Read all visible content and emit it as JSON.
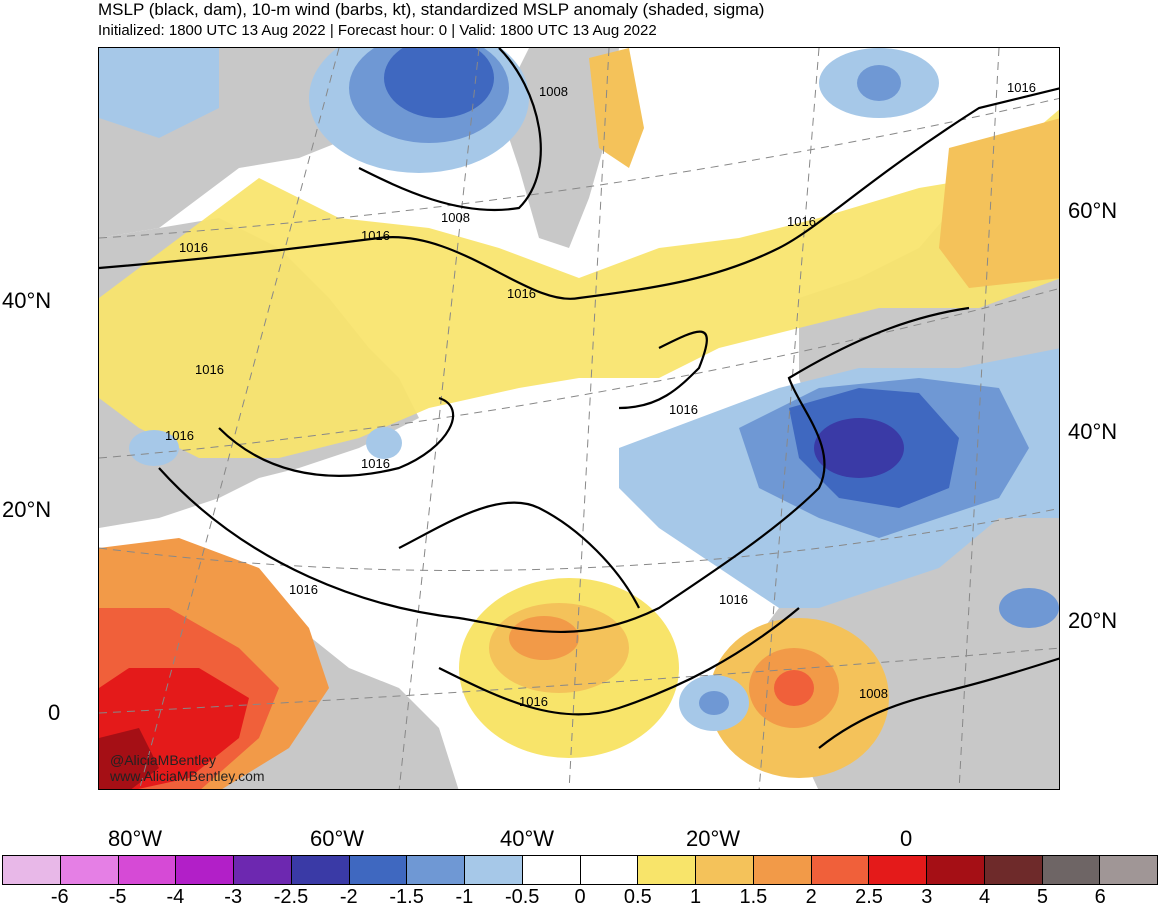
{
  "title": "MSLP (black, dam), 10-m wind (barbs, kt), standardized MSLP anomaly (shaded, sigma)",
  "subtitle": "Initialized: 1800 UTC 13 Aug 2022 | Forecast hour: 0 | Valid: 1800 UTC 13 Aug 2022",
  "watermark": [
    "@AliciaMBentley",
    "www.AliciaMBentley.com"
  ],
  "lat_labels_left": [
    "40°N",
    "20°N",
    "0"
  ],
  "lat_labels_right": [
    "60°N",
    "40°N",
    "20°N"
  ],
  "lon_labels": [
    "80°W",
    "60°W",
    "40°W",
    "20°W",
    "0"
  ],
  "isobar_labels": [
    "1008",
    "1008",
    "1016",
    "1016",
    "1016",
    "1016",
    "1016",
    "1016",
    "1016",
    "1016",
    "1016",
    "1016",
    "1016",
    "1008",
    "1016"
  ],
  "colorbar": {
    "labels": [
      "-6",
      "-5",
      "-4",
      "-3",
      "-2.5",
      "-2",
      "-1.5",
      "-1",
      "-0.5",
      "0",
      "0.5",
      "1",
      "1.5",
      "2",
      "2.5",
      "3",
      "4",
      "5",
      "6"
    ],
    "colors": [
      "#e8b8e8",
      "#e57fe5",
      "#d64ad6",
      "#b21fc8",
      "#6d28b0",
      "#3a3aa6",
      "#3f68c0",
      "#6f98d4",
      "#a6c8e8",
      "#ffffff",
      "#ffffff",
      "#f8e46a",
      "#f4c25a",
      "#f29a48",
      "#f0603a",
      "#e41a1a",
      "#a50f15",
      "#6e2a2a",
      "#6e6565",
      "#a09696"
    ]
  },
  "legend_colors": {
    "land_missing": "#c8c8c8",
    "anomaly_neg": "#6f98d4",
    "anomaly_pos": "#f8e46a"
  }
}
